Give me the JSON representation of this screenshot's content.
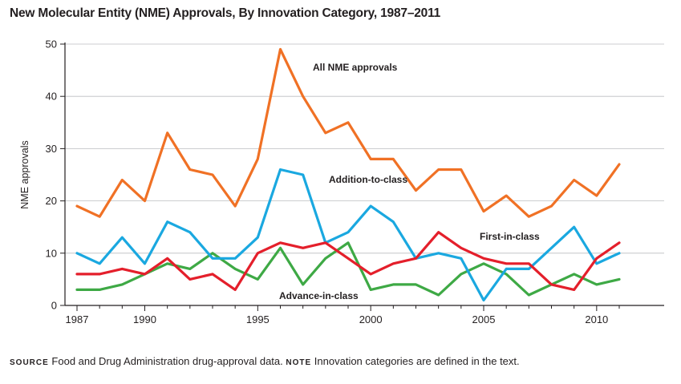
{
  "title": "New Molecular Entity (NME) Approvals, By Innovation Category, 1987–2011",
  "footnote": {
    "source_label": "SOURCE",
    "source_text": "Food and Drug Administration drug-approval data.",
    "note_label": "NOTE",
    "note_text": "Innovation categories are defined in the text."
  },
  "chart_data": {
    "type": "line",
    "ylabel": "NME approvals",
    "xlabel": "",
    "ylim": [
      0,
      50
    ],
    "yticks": [
      0,
      10,
      20,
      30,
      40,
      50
    ],
    "xlim": [
      1987,
      2011
    ],
    "xticks": [
      1987,
      1990,
      1995,
      2000,
      2005,
      2010
    ],
    "grid": true,
    "x": [
      1987,
      1988,
      1989,
      1990,
      1991,
      1992,
      1993,
      1994,
      1995,
      1996,
      1997,
      1998,
      1999,
      2000,
      2001,
      2002,
      2003,
      2004,
      2005,
      2006,
      2007,
      2008,
      2009,
      2010,
      2011
    ],
    "series": [
      {
        "name": "All NME approvals",
        "color": "#f07125",
        "values": [
          19,
          17,
          24,
          20,
          33,
          26,
          25,
          19,
          28,
          49,
          40,
          33,
          35,
          28,
          28,
          22,
          26,
          26,
          18,
          21,
          17,
          19,
          24,
          21,
          27
        ]
      },
      {
        "name": "Addition-to-class",
        "color": "#1aa8e0",
        "values": [
          10,
          8,
          13,
          8,
          16,
          14,
          9,
          9,
          13,
          26,
          25,
          12,
          14,
          19,
          16,
          9,
          10,
          9,
          1,
          7,
          7,
          11,
          15,
          8,
          10
        ]
      },
      {
        "name": "First-in-class",
        "color": "#e41f2b",
        "values": [
          6,
          6,
          7,
          6,
          9,
          5,
          6,
          3,
          10,
          12,
          11,
          12,
          9,
          6,
          8,
          9,
          14,
          11,
          9,
          8,
          8,
          4,
          3,
          9,
          12
        ]
      },
      {
        "name": "Advance-in-class",
        "color": "#3ea945",
        "values": [
          3,
          3,
          4,
          6,
          8,
          7,
          10,
          7,
          5,
          11,
          4,
          9,
          12,
          3,
          4,
          4,
          2,
          6,
          8,
          6,
          2,
          4,
          6,
          4,
          5
        ]
      }
    ],
    "annotations": [
      {
        "series": "All NME approvals",
        "text": "All NME approvals"
      },
      {
        "series": "Addition-to-class",
        "text": "Addition-to-class"
      },
      {
        "series": "First-in-class",
        "text": "First-in-class"
      },
      {
        "series": "Advance-in-class",
        "text": "Advance-in-class"
      }
    ]
  }
}
